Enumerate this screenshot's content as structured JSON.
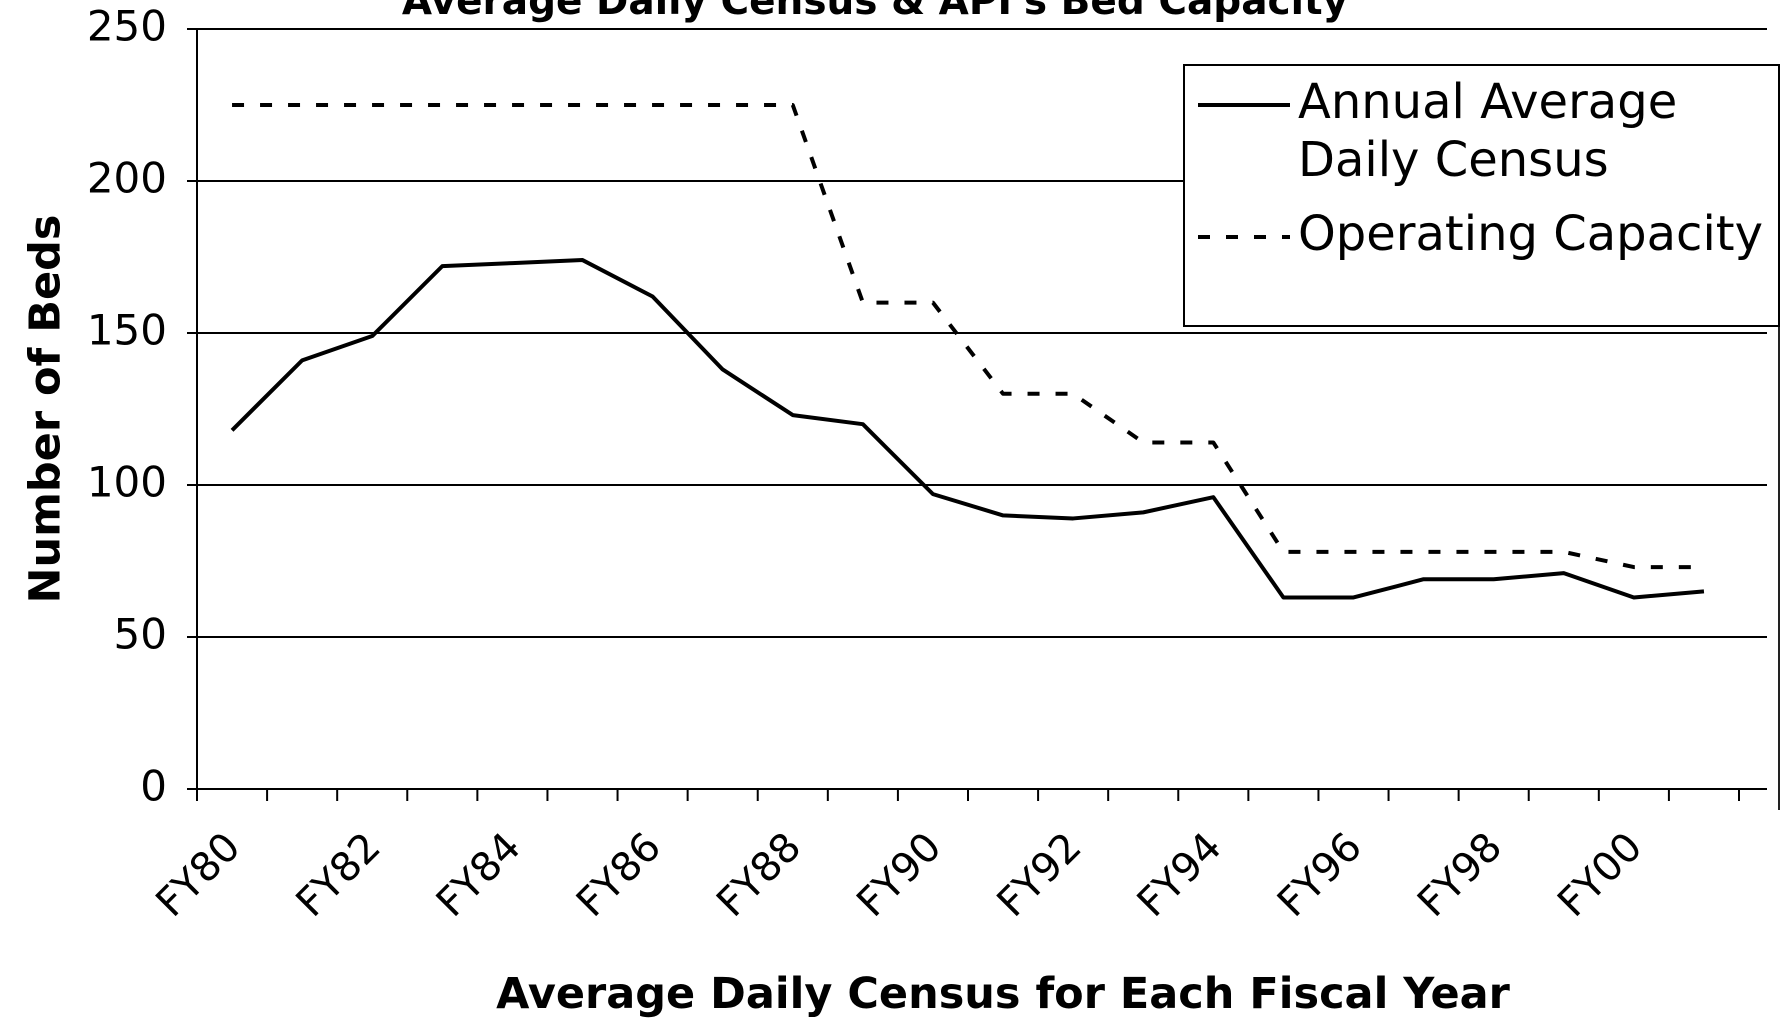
{
  "chart_data": {
    "type": "line",
    "title": "Average Daily Census & API's Bed Capacity",
    "x_label": "Average Daily Census for Each Fiscal Year",
    "y_label": "Number of Beds",
    "categories": [
      "FY80",
      null,
      "FY82",
      null,
      "FY84",
      null,
      "FY86",
      null,
      "FY88",
      null,
      "FY90",
      null,
      "FY92",
      null,
      "FY94",
      null,
      "FY96",
      null,
      "FY98",
      null,
      "FY00",
      null
    ],
    "series": [
      {
        "name": "Annual Average Daily Census",
        "color": "#000000",
        "dash": "solid",
        "values": [
          118,
          141,
          149,
          172,
          173,
          174,
          162,
          138,
          123,
          120,
          97,
          90,
          89,
          91,
          96,
          63,
          63,
          69,
          69,
          71,
          63,
          65
        ]
      },
      {
        "name": "Operating Capacity",
        "color": "#000000",
        "dash": "dashed",
        "values": [
          225,
          225,
          225,
          225,
          225,
          225,
          225,
          225,
          225,
          160,
          160,
          130,
          130,
          114,
          114,
          78,
          78,
          78,
          78,
          78,
          73,
          73
        ]
      }
    ],
    "ylim": [
      0,
      250
    ],
    "yticks": [
      0,
      50,
      100,
      150,
      200,
      250
    ],
    "grid": true,
    "legend": "top-right"
  }
}
